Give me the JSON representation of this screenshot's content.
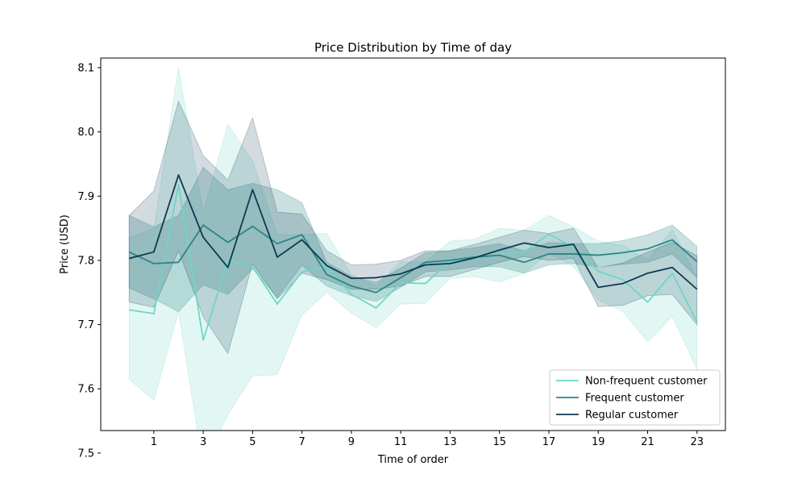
{
  "chart_data": {
    "type": "line",
    "title": "Price Distribution by Time of day",
    "xlabel": "Time of order",
    "ylabel": "Price (USD)",
    "xlim": [
      -1.15,
      24.15
    ],
    "ylim": [
      7.535,
      8.115
    ],
    "xticks": [
      1,
      3,
      5,
      7,
      9,
      11,
      13,
      15,
      17,
      19,
      21,
      23
    ],
    "xtick_labels": [
      "1",
      "3",
      "5",
      "7",
      "9",
      "11",
      "13",
      "15",
      "17",
      "19",
      "21",
      "23"
    ],
    "yticks": [
      7.5,
      7.6,
      7.7,
      7.8,
      7.9,
      8.0,
      8.1
    ],
    "ytick_labels": [
      "7.5",
      "7.6",
      "7.7",
      "7.8",
      "7.9",
      "8.0",
      "8.1"
    ],
    "grid": false,
    "legend_position": "lower-right",
    "x": [
      0,
      1,
      2,
      3,
      4,
      5,
      6,
      7,
      8,
      9,
      10,
      11,
      12,
      13,
      14,
      15,
      16,
      17,
      18,
      19,
      20,
      21,
      22,
      23
    ],
    "series": [
      {
        "name": "Non-frequent customer",
        "color": "#6fd6c5",
        "band_opacity": 0.2,
        "values": [
          7.723,
          7.717,
          7.918,
          7.676,
          7.8,
          7.79,
          7.732,
          7.782,
          7.79,
          7.747,
          7.726,
          7.765,
          7.764,
          7.799,
          7.803,
          7.81,
          7.813,
          7.841,
          7.82,
          7.783,
          7.77,
          7.735,
          7.78,
          7.704
        ],
        "lower": [
          7.615,
          7.582,
          7.72,
          7.478,
          7.56,
          7.62,
          7.622,
          7.715,
          7.75,
          7.718,
          7.695,
          7.732,
          7.733,
          7.772,
          7.775,
          7.766,
          7.78,
          7.812,
          7.79,
          7.738,
          7.72,
          7.673,
          7.713,
          7.63
        ],
        "upper": [
          7.835,
          7.85,
          8.1,
          7.875,
          8.012,
          7.955,
          7.84,
          7.84,
          7.842,
          7.778,
          7.76,
          7.798,
          7.797,
          7.83,
          7.833,
          7.85,
          7.847,
          7.87,
          7.852,
          7.83,
          7.823,
          7.801,
          7.848,
          7.773
        ]
      },
      {
        "name": "Frequent customer",
        "color": "#2a8584",
        "band_opacity": 0.25,
        "values": [
          7.813,
          7.795,
          7.797,
          7.855,
          7.828,
          7.853,
          7.826,
          7.84,
          7.778,
          7.76,
          7.75,
          7.773,
          7.797,
          7.8,
          7.805,
          7.808,
          7.797,
          7.81,
          7.81,
          7.808,
          7.812,
          7.818,
          7.832,
          7.798
        ],
        "lower": [
          7.757,
          7.74,
          7.72,
          7.762,
          7.747,
          7.787,
          7.742,
          7.792,
          7.76,
          7.745,
          7.736,
          7.758,
          7.782,
          7.785,
          7.79,
          7.79,
          7.78,
          7.793,
          7.795,
          7.79,
          7.794,
          7.797,
          7.81,
          7.773
        ],
        "upper": [
          7.87,
          7.852,
          7.87,
          7.945,
          7.91,
          7.92,
          7.91,
          7.89,
          7.797,
          7.775,
          7.766,
          7.788,
          7.812,
          7.815,
          7.82,
          7.826,
          7.815,
          7.828,
          7.826,
          7.826,
          7.831,
          7.84,
          7.855,
          7.822
        ]
      },
      {
        "name": "Regular customer",
        "color": "#0d3a52",
        "band_opacity": 0.18,
        "values": [
          7.803,
          7.813,
          7.933,
          7.836,
          7.789,
          7.91,
          7.805,
          7.832,
          7.792,
          7.772,
          7.773,
          7.779,
          7.793,
          7.795,
          7.804,
          7.816,
          7.827,
          7.82,
          7.825,
          7.758,
          7.764,
          7.78,
          7.789,
          7.755
        ],
        "lower": [
          7.735,
          7.727,
          7.815,
          7.712,
          7.655,
          7.795,
          7.74,
          7.78,
          7.77,
          7.755,
          7.755,
          7.76,
          7.775,
          7.775,
          7.786,
          7.797,
          7.806,
          7.8,
          7.803,
          7.728,
          7.73,
          7.745,
          7.747,
          7.7
        ],
        "upper": [
          7.87,
          7.908,
          8.048,
          7.963,
          7.925,
          8.022,
          7.875,
          7.872,
          7.815,
          7.793,
          7.794,
          7.8,
          7.815,
          7.815,
          7.825,
          7.836,
          7.847,
          7.842,
          7.85,
          7.788,
          7.796,
          7.813,
          7.828,
          7.807
        ]
      }
    ]
  }
}
